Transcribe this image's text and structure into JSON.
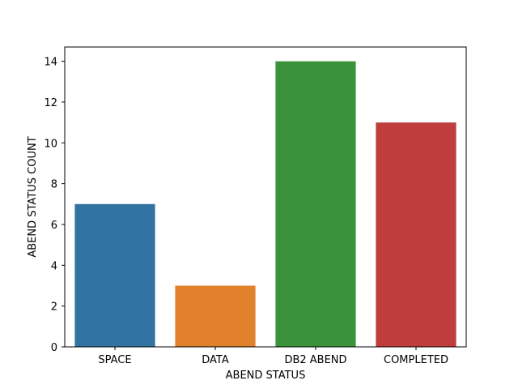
{
  "chart_data": {
    "type": "bar",
    "title": "",
    "xlabel": "ABEND STATUS",
    "ylabel": "ABEND STATUS COUNT",
    "categories": [
      "SPACE",
      "DATA",
      "DB2 ABEND",
      "COMPLETED"
    ],
    "values": [
      7,
      3,
      14,
      11
    ],
    "colors": [
      "#3274a1",
      "#e1812c",
      "#3a923a",
      "#c03d3e"
    ],
    "ylim": [
      0,
      14.7
    ],
    "yticks": [
      0,
      2,
      4,
      6,
      8,
      10,
      12,
      14
    ],
    "ytick_labels": [
      "0",
      "2",
      "4",
      "6",
      "8",
      "10",
      "12",
      "14"
    ],
    "grid": false,
    "legend": "none"
  }
}
